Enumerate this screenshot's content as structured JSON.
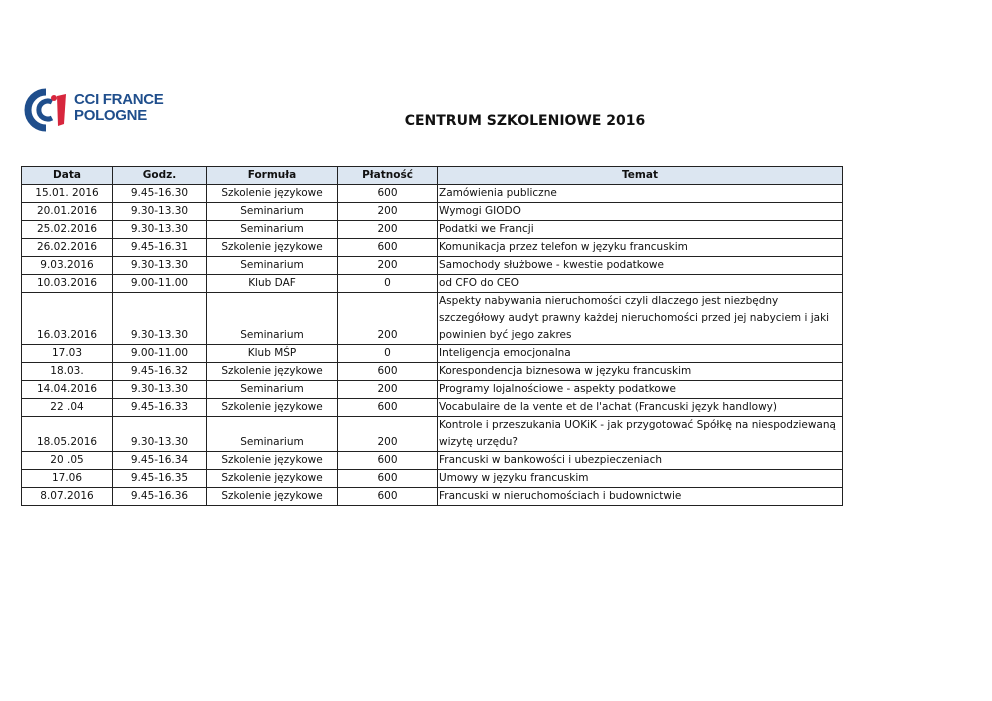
{
  "logo": {
    "line1": "CCI FRANCE",
    "line2": "POLOGNE",
    "colors": {
      "blue": "#1f4e8c",
      "red": "#d7263d"
    }
  },
  "title": "CENTRUM SZKOLENIOWE 2016",
  "table": {
    "headers": [
      "Data",
      "Godz.",
      "Formuła",
      "Płatność",
      "Temat"
    ],
    "header_bg": "#dce6f1",
    "rows": [
      {
        "data": "15.01. 2016",
        "godz": "9.45-16.30",
        "formula": "Szkolenie językowe",
        "platnosc": "600",
        "temat": "Zamówienia publiczne"
      },
      {
        "data": "20.01.2016",
        "godz": "9.30-13.30",
        "formula": "Seminarium",
        "platnosc": "200",
        "temat": "Wymogi GIODO"
      },
      {
        "data": "25.02.2016",
        "godz": "9.30-13.30",
        "formula": "Seminarium",
        "platnosc": "200",
        "temat": "Podatki we Francji"
      },
      {
        "data": "26.02.2016",
        "godz": "9.45-16.31",
        "formula": "Szkolenie językowe",
        "platnosc": "600",
        "temat": "Komunikacja przez telefon w języku francuskim"
      },
      {
        "data": "9.03.2016",
        "godz": "9.30-13.30",
        "formula": "Seminarium",
        "platnosc": "200",
        "temat": "Samochody służbowe - kwestie podatkowe"
      },
      {
        "data": "10.03.2016",
        "godz": "9.00-11.00",
        "formula": "Klub DAF",
        "platnosc": "0",
        "temat": "od CFO do CEO"
      },
      {
        "data": "16.03.2016",
        "godz": "9.30-13.30",
        "formula": "Seminarium",
        "platnosc": "200",
        "temat": "Aspekty nabywania nieruchomości czyli dlaczego jest niezbędny szczegółowy audyt prawny każdej nieruchomości przed jej nabyciem i jaki powinien być jego zakres"
      },
      {
        "data": "17.03",
        "godz": "9.00-11.00",
        "formula": "Klub MŚP",
        "platnosc": "0",
        "temat": "Inteligencja emocjonalna"
      },
      {
        "data": "18.03.",
        "godz": "9.45-16.32",
        "formula": "Szkolenie językowe",
        "platnosc": "600",
        "temat": "Korespondencja biznesowa w języku francuskim"
      },
      {
        "data": "14.04.2016",
        "godz": "9.30-13.30",
        "formula": "Seminarium",
        "platnosc": "200",
        "temat": "Programy lojalnościowe - aspekty podatkowe"
      },
      {
        "data": "22 .04",
        "godz": "9.45-16.33",
        "formula": "Szkolenie językowe",
        "platnosc": "600",
        "temat": "Vocabulaire de la vente et de l'achat (Francuski język handlowy)"
      },
      {
        "data": "18.05.2016",
        "godz": "9.30-13.30",
        "formula": "Seminarium",
        "platnosc": "200",
        "temat": "Kontrole i przeszukania UOKiK - jak przygotować Spółkę na niespodziewaną wizytę urzędu?"
      },
      {
        "data": "20 .05",
        "godz": "9.45-16.34",
        "formula": "Szkolenie językowe",
        "platnosc": "600",
        "temat": "Francuski w bankowości i ubezpieczeniach"
      },
      {
        "data": "17.06",
        "godz": "9.45-16.35",
        "formula": "Szkolenie językowe",
        "platnosc": "600",
        "temat": "Umowy w języku francuskim"
      },
      {
        "data": "8.07.2016",
        "godz": "9.45-16.36",
        "formula": "Szkolenie językowe",
        "platnosc": "600",
        "temat": "Francuski w nieruchomościach i budownictwie"
      }
    ]
  }
}
